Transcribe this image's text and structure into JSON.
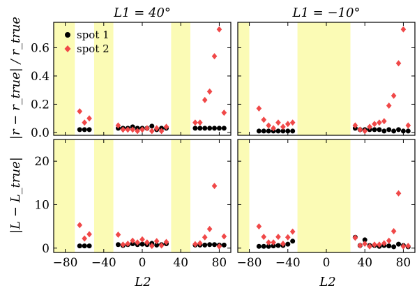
{
  "figure": {
    "legend": [
      {
        "label": "spot 1",
        "color": "#000000",
        "marker": "circle"
      },
      {
        "label": "spot 2",
        "color": "#f04848",
        "marker": "diamond"
      }
    ],
    "xlabel": "L2",
    "x_ticks": [
      -80,
      -40,
      0,
      40,
      80
    ]
  },
  "chart_data": [
    {
      "type": "scatter",
      "panel": "top-left",
      "title": "L1 = 40°",
      "ylabel": "|r − r_true| / r_true",
      "xlim": [
        -92,
        92
      ],
      "ylim": [
        -0.02,
        0.78
      ],
      "y_ticks": [
        {
          "v": 0.0,
          "t": "0.0"
        },
        {
          "v": 0.2,
          "t": "0.2"
        },
        {
          "v": 0.4,
          "t": "0.4"
        },
        {
          "v": 0.6,
          "t": "0.6"
        }
      ],
      "bands": [
        [
          -92,
          -70
        ],
        [
          -50,
          -30
        ],
        [
          30,
          50
        ]
      ],
      "series": [
        {
          "name": "spot 1",
          "color": "#000000",
          "marker": "circle",
          "x": [
            -65,
            -60,
            -55,
            -25,
            -20,
            -15,
            -10,
            -5,
            0,
            5,
            10,
            15,
            20,
            25,
            55,
            60,
            65,
            70,
            75,
            80,
            85
          ],
          "y": [
            0.02,
            0.02,
            0.02,
            0.03,
            0.03,
            0.03,
            0.04,
            0.03,
            0.03,
            0.03,
            0.045,
            0.02,
            0.03,
            0.03,
            0.03,
            0.03,
            0.03,
            0.03,
            0.03,
            0.03,
            0.03
          ]
        },
        {
          "name": "spot 2",
          "color": "#f04848",
          "marker": "diamond",
          "x": [
            -65,
            -60,
            -55,
            -25,
            -20,
            -15,
            -10,
            -5,
            0,
            5,
            10,
            15,
            20,
            25,
            55,
            60,
            65,
            70,
            75,
            80,
            85
          ],
          "y": [
            0.15,
            0.07,
            0.1,
            0.05,
            0.02,
            0.02,
            0.02,
            0.01,
            0.02,
            0.03,
            0.01,
            0.03,
            0.01,
            0.04,
            0.07,
            0.07,
            0.23,
            0.29,
            0.54,
            0.73,
            0.14
          ]
        }
      ]
    },
    {
      "type": "scatter",
      "panel": "top-right",
      "title": "L1 = −10°",
      "ylabel": "",
      "xlim": [
        -92,
        92
      ],
      "ylim": [
        -0.02,
        0.78
      ],
      "y_ticks": [
        {
          "v": 0.0,
          "t": ""
        },
        {
          "v": 0.2,
          "t": ""
        },
        {
          "v": 0.4,
          "t": ""
        },
        {
          "v": 0.6,
          "t": ""
        }
      ],
      "bands": [
        [
          -92,
          -80
        ],
        [
          -30,
          25
        ]
      ],
      "series": [
        {
          "name": "spot 1",
          "color": "#000000",
          "marker": "circle",
          "x": [
            -70,
            -65,
            -60,
            -55,
            -50,
            -45,
            -40,
            -35,
            30,
            35,
            40,
            45,
            50,
            55,
            60,
            65,
            70,
            75,
            80,
            85
          ],
          "y": [
            0.01,
            0.01,
            0.01,
            0.01,
            0.01,
            0.01,
            0.01,
            0.01,
            0.03,
            0.02,
            0.02,
            0.02,
            0.02,
            0.02,
            0.01,
            0.02,
            0.01,
            0.02,
            0.01,
            0.01
          ]
        },
        {
          "name": "spot 2",
          "color": "#f04848",
          "marker": "diamond",
          "x": [
            -70,
            -65,
            -60,
            -55,
            -50,
            -45,
            -40,
            -35,
            30,
            35,
            40,
            45,
            50,
            55,
            60,
            65,
            70,
            75,
            80,
            85
          ],
          "y": [
            0.17,
            0.09,
            0.05,
            0.03,
            0.07,
            0.04,
            0.06,
            0.07,
            0.05,
            0.02,
            0.01,
            0.04,
            0.06,
            0.07,
            0.08,
            0.19,
            0.26,
            0.49,
            0.73,
            0.05
          ]
        }
      ]
    },
    {
      "type": "scatter",
      "panel": "bottom-left",
      "title": "",
      "ylabel": "|L − L_true|",
      "xlim": [
        -92,
        92
      ],
      "ylim": [
        -1,
        25
      ],
      "y_ticks": [
        {
          "v": 0,
          "t": "0"
        },
        {
          "v": 10,
          "t": "10"
        },
        {
          "v": 20,
          "t": "20"
        }
      ],
      "bands": [
        [
          -92,
          -70
        ],
        [
          -50,
          -30
        ],
        [
          30,
          50
        ]
      ],
      "series": [
        {
          "name": "spot 1",
          "color": "#000000",
          "marker": "circle",
          "x": [
            -65,
            -60,
            -55,
            -25,
            -20,
            -15,
            -10,
            -5,
            0,
            5,
            10,
            15,
            20,
            25,
            55,
            60,
            65,
            70,
            75,
            80,
            85
          ],
          "y": [
            0.5,
            0.5,
            0.5,
            0.8,
            0.6,
            0.8,
            1.0,
            0.8,
            0.9,
            0.8,
            1.1,
            0.7,
            0.8,
            1.0,
            0.7,
            0.7,
            0.7,
            0.8,
            0.8,
            0.7,
            0.7
          ]
        },
        {
          "name": "spot 2",
          "color": "#f04848",
          "marker": "diamond",
          "x": [
            -65,
            -60,
            -55,
            -25,
            -20,
            -15,
            -10,
            -5,
            0,
            5,
            10,
            15,
            20,
            25,
            55,
            60,
            65,
            70,
            75,
            80,
            85
          ],
          "y": [
            5.3,
            2.2,
            3.2,
            3.1,
            0.8,
            1.0,
            1.7,
            1.3,
            2.0,
            1.3,
            0.5,
            1.6,
            0.6,
            1.4,
            0.9,
            1.1,
            2.5,
            4.4,
            14.3,
            0.4,
            2.7
          ]
        }
      ]
    },
    {
      "type": "scatter",
      "panel": "bottom-right",
      "title": "",
      "ylabel": "",
      "xlim": [
        -92,
        92
      ],
      "ylim": [
        -1,
        25
      ],
      "y_ticks": [
        {
          "v": 0,
          "t": ""
        },
        {
          "v": 10,
          "t": ""
        },
        {
          "v": 20,
          "t": ""
        }
      ],
      "bands": [
        [
          -92,
          -80
        ],
        [
          -30,
          25
        ]
      ],
      "series": [
        {
          "name": "spot 1",
          "color": "#000000",
          "marker": "circle",
          "x": [
            -70,
            -65,
            -60,
            -55,
            -50,
            -45,
            -40,
            -35,
            30,
            35,
            40,
            45,
            50,
            55,
            60,
            65,
            70,
            75,
            80,
            85
          ],
          "y": [
            0.4,
            0.4,
            0.4,
            0.5,
            0.6,
            0.6,
            0.9,
            1.6,
            2.5,
            0.6,
            1.9,
            0.6,
            0.6,
            0.4,
            0.6,
            0.5,
            0.3,
            0.9,
            0.6,
            0.3
          ]
        },
        {
          "name": "spot 2",
          "color": "#f04848",
          "marker": "diamond",
          "x": [
            -70,
            -65,
            -60,
            -55,
            -50,
            -45,
            -40,
            -35,
            30,
            35,
            40,
            45,
            50,
            55,
            60,
            65,
            70,
            75,
            80,
            85
          ],
          "y": [
            5.0,
            2.6,
            1.3,
            1.3,
            2.6,
            1.0,
            2.5,
            3.8,
            2.4,
            0.6,
            1.0,
            0.4,
            0.8,
            0.8,
            1.1,
            1.7,
            3.9,
            12.6,
            0.4,
            0.5
          ]
        }
      ]
    }
  ]
}
